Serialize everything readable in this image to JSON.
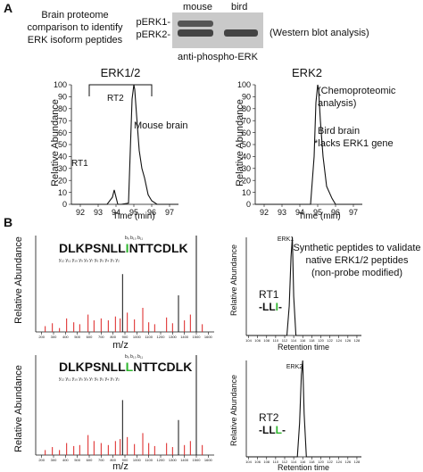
{
  "panel_a": {
    "label": "A",
    "intro": [
      "Brain proteome",
      "comparison to identify",
      "ERK isoform peptides"
    ],
    "blot": {
      "lanes": [
        "mouse",
        "bird"
      ],
      "bands": [
        "pERK1-",
        "pERK2-"
      ],
      "antibody": "anti-phospho-ERK",
      "caption": "(Western blot analysis)"
    },
    "left": {
      "title": "ERK1/2",
      "peak_labels": [
        "RT2",
        "RT1"
      ],
      "annotation": "Mouse brain",
      "ylabel": "Relative Abundance",
      "xlabel": "Time (min)"
    },
    "right": {
      "title": "ERK2",
      "annotation_lines": [
        "(Chemoproteomic",
        "analysis)",
        "Bird brain",
        "*lacks ERK1 gene"
      ],
      "ylabel": "Relative Abundance",
      "xlabel": "Time (min)"
    }
  },
  "panel_b": {
    "label": "B",
    "note": [
      "Synthetic peptides to validate",
      "native ERK1/2 peptides",
      "(non-probe modified)"
    ],
    "spectrum_top": {
      "sequence_pre": "DLKPSNLL",
      "sequence_hl": "I",
      "sequence_post": "NTTCDLK",
      "y_ions": "y₁₂ y₁₁ y₁₀ y₉ y₈ y₇ y₆ y₅ y₄ y₃ y₂",
      "b_ions": "b₉   b₁₀ b₁₁",
      "ylabel": "Relative Abundance",
      "xlabel": "m/z"
    },
    "spectrum_bottom": {
      "sequence_pre": "DLKPSNLL",
      "sequence_hl": "L",
      "sequence_post": "NTTCDLK",
      "y_ions": "y₁₂ y₁₁ y₁₀ y₉ y₈ y₇ y₆ y₅ y₄ y₃ y₂",
      "b_ions": "b₉   b₁₀ b₁₁",
      "ylabel": "Relative Abundance",
      "xlabel": "m/z"
    },
    "chrom_top": {
      "title": "ERK1",
      "rt": "RT1",
      "tag_pre": "-LL",
      "tag_hl": "I",
      "tag_post": "-",
      "ylabel": "Relative Abundance",
      "xlabel": "Retention time"
    },
    "chrom_bottom": {
      "title": "ERK2",
      "rt": "RT2",
      "tag_pre": "-LL",
      "tag_hl": "L",
      "tag_post": "-",
      "ylabel": "Relative Abundance",
      "xlabel": "Retention time"
    },
    "colors": {
      "highlight": "#2db52d",
      "ion_red": "#dd2222"
    }
  },
  "chart_data": [
    {
      "type": "line",
      "title": "ERK1/2",
      "xlabel": "Time (min)",
      "ylabel": "Relative Abundance",
      "xlim": [
        91.5,
        97.5
      ],
      "ylim": [
        0,
        100
      ],
      "xticks": [
        92,
        93,
        94,
        95,
        96,
        97
      ],
      "yticks": [
        0,
        10,
        20,
        30,
        40,
        50,
        60,
        70,
        80,
        90,
        100
      ],
      "x": [
        91.5,
        93.5,
        93.8,
        93.9,
        94.0,
        94.1,
        94.3,
        94.7,
        94.8,
        94.9,
        95.0,
        95.05,
        95.15,
        95.3,
        95.45,
        95.6,
        95.8,
        96.0,
        96.3,
        97.5
      ],
      "y": [
        0,
        0,
        6,
        12,
        6,
        0,
        0,
        1,
        45,
        88,
        100,
        96,
        75,
        45,
        30,
        22,
        8,
        3,
        0,
        0
      ]
    },
    {
      "type": "line",
      "title": "ERK2",
      "xlabel": "Time (min)",
      "ylabel": "Relative Abundance",
      "xlim": [
        91.5,
        97.5
      ],
      "ylim": [
        0,
        100
      ],
      "xticks": [
        92,
        93,
        94,
        95,
        96,
        97
      ],
      "yticks": [
        0,
        10,
        20,
        30,
        40,
        50,
        60,
        70,
        80,
        90,
        100
      ],
      "x": [
        91.5,
        94.6,
        94.8,
        94.9,
        95.0,
        95.05,
        95.15,
        95.3,
        95.5,
        95.8,
        96.0,
        97.5
      ],
      "y": [
        0,
        0,
        40,
        85,
        100,
        96,
        70,
        40,
        15,
        5,
        0,
        0
      ]
    },
    {
      "type": "bar",
      "title": "",
      "xlabel": "m/z",
      "ylabel": "Relative Abundance",
      "xlim": [
        150,
        1650
      ],
      "ylim": [
        0,
        100
      ],
      "xticks": [
        200,
        300,
        400,
        500,
        600,
        700,
        800,
        900,
        1000,
        1100,
        1200,
        1300,
        1400,
        1500,
        1600
      ],
      "x": [
        230,
        290,
        350,
        410,
        470,
        520,
        590,
        640,
        700,
        760,
        820,
        860,
        880,
        920,
        980,
        1050,
        1100,
        1150,
        1250,
        1300,
        1350,
        1400,
        1450,
        1500,
        1550
      ],
      "y": [
        6,
        9,
        4,
        14,
        10,
        8,
        18,
        12,
        14,
        12,
        16,
        14,
        60,
        20,
        13,
        25,
        10,
        8,
        15,
        9,
        38,
        12,
        18,
        100,
        8
      ]
    },
    {
      "type": "bar",
      "title": "",
      "xlabel": "m/z",
      "ylabel": "Relative Abundance",
      "xlim": [
        150,
        1650
      ],
      "ylim": [
        0,
        100
      ],
      "xticks": [
        200,
        300,
        400,
        500,
        600,
        700,
        800,
        900,
        1000,
        1100,
        1200,
        1300,
        1400,
        1500,
        1600
      ],
      "x": [
        230,
        290,
        350,
        410,
        470,
        520,
        590,
        640,
        700,
        760,
        820,
        860,
        880,
        920,
        980,
        1050,
        1100,
        1150,
        1250,
        1300,
        1350,
        1400,
        1450,
        1500,
        1550
      ],
      "y": [
        5,
        8,
        5,
        12,
        9,
        10,
        20,
        14,
        12,
        10,
        14,
        16,
        55,
        18,
        11,
        22,
        12,
        9,
        12,
        8,
        35,
        10,
        14,
        100,
        10
      ]
    },
    {
      "type": "line",
      "title": "ERK1",
      "xlabel": "Retention time",
      "ylabel": "Relative Abundance",
      "xlim": [
        103.5,
        129
      ],
      "ylim": [
        0,
        100
      ],
      "xticks": [
        104,
        106,
        108,
        110,
        112,
        114,
        116,
        118,
        120,
        122,
        124,
        126,
        128
      ],
      "x": [
        103.5,
        112.5,
        113.0,
        113.4,
        113.7,
        114.0,
        114.5,
        129
      ],
      "y": [
        0,
        0,
        30,
        80,
        100,
        40,
        0,
        0
      ]
    },
    {
      "type": "line",
      "title": "ERK2",
      "xlabel": "Retention time",
      "ylabel": "Relative Abundance",
      "xlim": [
        103.5,
        129
      ],
      "ylim": [
        0,
        100
      ],
      "xticks": [
        104,
        106,
        108,
        110,
        112,
        114,
        116,
        118,
        120,
        122,
        124,
        126,
        128
      ],
      "x": [
        103.5,
        114.8,
        115.3,
        115.7,
        116.0,
        116.3,
        116.8,
        129
      ],
      "y": [
        0,
        0,
        35,
        85,
        100,
        45,
        0,
        0
      ]
    }
  ]
}
